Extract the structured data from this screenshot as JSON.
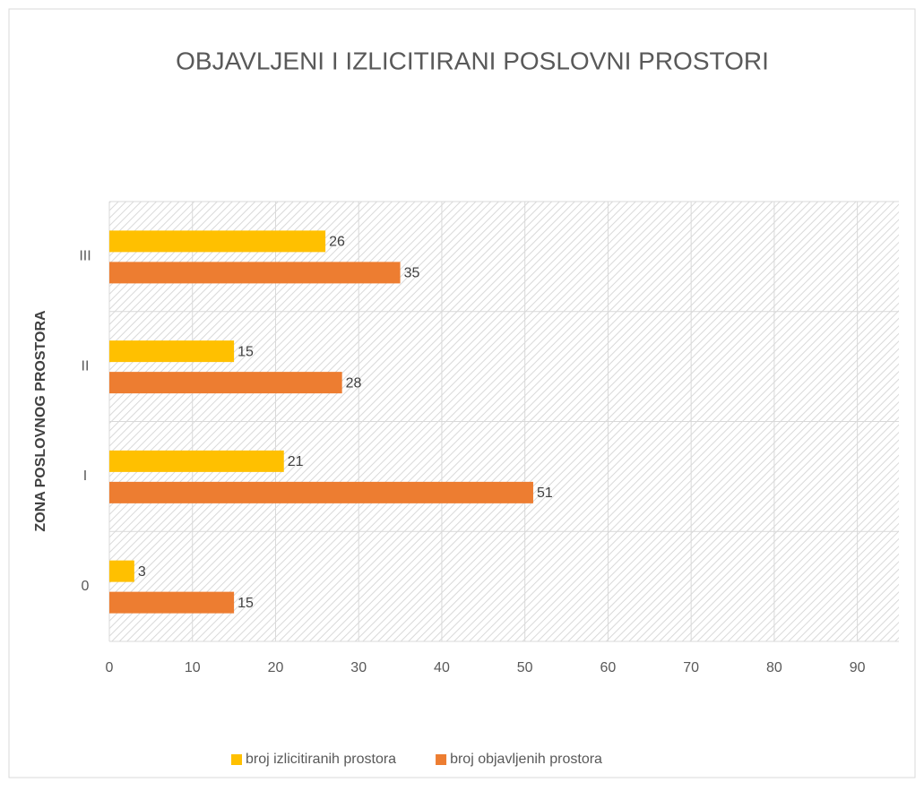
{
  "chart_data": {
    "type": "bar",
    "orientation": "horizontal",
    "title": "OBJAVLJENI I IZLICITIRANI POSLOVNI PROSTORI",
    "y_label": "ZONA POSLOVNOG PROSTORA",
    "categories": [
      "0",
      "I",
      "II",
      "III"
    ],
    "series": [
      {
        "name": "broj izlicitiranih prostora",
        "color": "#ffc000",
        "values": [
          3,
          21,
          15,
          26
        ]
      },
      {
        "name": "broj objavljenih prostora",
        "color": "#ed7d31",
        "values": [
          15,
          51,
          28,
          35
        ]
      }
    ],
    "xlim": [
      0,
      95
    ],
    "xticks": [
      0,
      10,
      20,
      30,
      40,
      50,
      60,
      70,
      80,
      90
    ],
    "grid": true,
    "legend": "bottom"
  }
}
